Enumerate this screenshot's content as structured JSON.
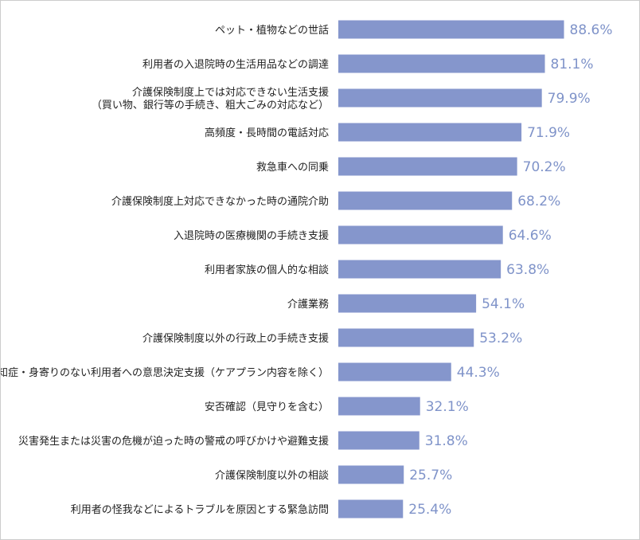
{
  "chart_data": {
    "type": "bar",
    "orientation": "horizontal",
    "categories": [
      [
        "ペット・植物などの世話"
      ],
      [
        "利用者の入退院時の生活用品などの調達"
      ],
      [
        "介護保険制度上では対応できない生活支援",
        "（買い物、銀行等の手続き、粗大ごみの対応など）"
      ],
      [
        "高頻度・長時間の電話対応"
      ],
      [
        "救急車への同乗"
      ],
      [
        "介護保険制度上対応できなかった時の通院介助"
      ],
      [
        "入退院時の医療機関の手続き支援"
      ],
      [
        "利用者家族の個人的な相談"
      ],
      [
        "介護業務"
      ],
      [
        "介護保険制度以外の行政上の手続き支援"
      ],
      [
        "認知症・身寄りのない利用者への意思決定支援（ケアプラン内容を除く）"
      ],
      [
        "安否確認（見守りを含む）"
      ],
      [
        "災害発生または災害の危機が迫った時の警戒の呼びかけや避難支援"
      ],
      [
        "介護保険制度以外の相談"
      ],
      [
        "利用者の怪我などによるトラブルを原因とする緊急訪問"
      ]
    ],
    "values": [
      88.6,
      81.1,
      79.9,
      71.9,
      70.2,
      68.2,
      64.6,
      63.8,
      54.1,
      53.2,
      44.3,
      32.1,
      31.8,
      25.7,
      25.4
    ],
    "value_labels": [
      "88.6%",
      "81.1%",
      "79.9%",
      "71.9%",
      "70.2%",
      "68.2%",
      "64.6%",
      "63.8%",
      "54.1%",
      "53.2%",
      "44.3%",
      "32.1%",
      "31.8%",
      "25.7%",
      "25.4%"
    ],
    "unit": "%",
    "xlim": [
      0,
      100
    ],
    "grid": false,
    "bar_color": "#8596cc",
    "label_color": "#7f93c9"
  }
}
